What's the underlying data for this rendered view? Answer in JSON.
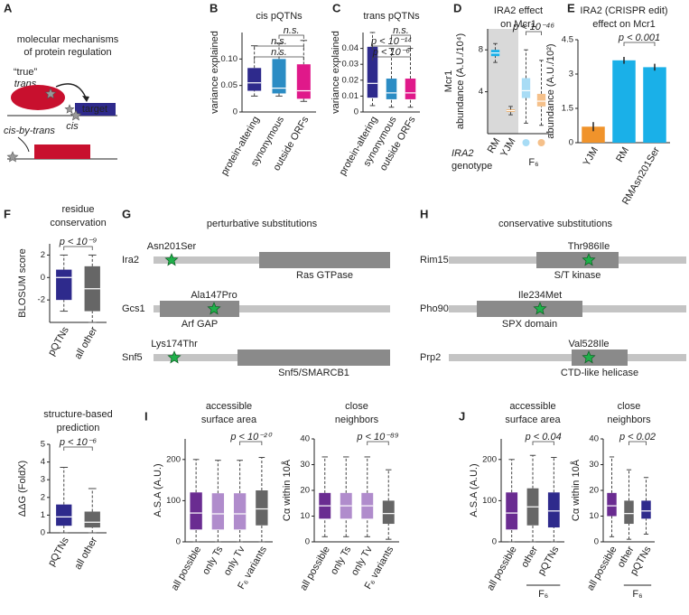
{
  "diagram_a": {
    "panel": "A",
    "title": [
      "molecular mechanisms",
      "of protein regulation"
    ],
    "labels": [
      "“true”",
      "trans",
      "target",
      "cis",
      "cis-by-trans"
    ]
  },
  "diagram_g": {
    "panel": "G",
    "title": "perturbative substitutions",
    "proteins": [
      {
        "name": "Ira2",
        "mutation": "Asn201Ser",
        "domain": "Ras GTPase"
      },
      {
        "name": "Gcs1",
        "mutation": "Ala147Pro",
        "domain": "Arf GAP"
      },
      {
        "name": "Snf5",
        "mutation": "Lys174Thr",
        "domain": "Snf5/SMARCB1"
      }
    ]
  },
  "diagram_h": {
    "panel": "H",
    "title": "conservative substitutions",
    "proteins": [
      {
        "name": "Rim15",
        "mutation": "Thr986Ile",
        "domain": "S/T kinase"
      },
      {
        "name": "Pho90",
        "mutation": "Ile234Met",
        "domain": "SPX domain"
      },
      {
        "name": "Prp2",
        "mutation": "Val528Ile",
        "domain": "CTD-like helicase"
      }
    ]
  },
  "chart_data": [
    {
      "type": "box",
      "panel": "B",
      "title": [
        "cis pQTNs"
      ],
      "ylabel": [
        "variance explained"
      ],
      "ylim": [
        0,
        0.15
      ],
      "yticks": [
        0,
        0.05,
        {
          "value": 0.1,
          "label": "0.10"
        }
      ],
      "categories": [
        "protein-altering",
        "synonymous",
        "outside ORFs"
      ],
      "colors": [
        "#2e2a8c",
        "#2b8cc4",
        "#e0198a"
      ],
      "boxes": [
        {
          "whislo": 0.03,
          "q1": 0.04,
          "med": 0.055,
          "q3": 0.083,
          "whishi": 0.125
        },
        {
          "whislo": 0.03,
          "q1": 0.035,
          "med": 0.045,
          "q3": 0.1,
          "whishi": 0.13
        },
        {
          "whislo": 0.02,
          "q1": 0.025,
          "med": 0.04,
          "q3": 0.09,
          "whishi": 0.135
        }
      ],
      "annotations": [
        "n.s.",
        "n.s.",
        "n.s."
      ]
    },
    {
      "type": "box",
      "panel": "C",
      "title": [
        "trans pQTNs"
      ],
      "ylabel": [
        "variance explained"
      ],
      "ylim": [
        0,
        0.05
      ],
      "yticks": [
        0,
        0.01,
        0.02,
        0.03,
        0.04
      ],
      "categories": [
        "protein-altering",
        "synonymous",
        "outside ORFs"
      ],
      "colors": [
        "#2e2a8c",
        "#2b8cc4",
        "#e0198a"
      ],
      "boxes": [
        {
          "whislo": 0.004,
          "q1": 0.009,
          "med": 0.018,
          "q3": 0.041,
          "whishi": 0.05
        },
        {
          "whislo": 0.003,
          "q1": 0.008,
          "med": 0.012,
          "q3": 0.021,
          "whishi": 0.04
        },
        {
          "whislo": 0.003,
          "q1": 0.008,
          "med": 0.012,
          "q3": 0.021,
          "whishi": 0.04
        }
      ],
      "annotations": [
        "n.s.",
        "p < 10⁻¹⁴",
        "p < 10⁻⁶"
      ]
    },
    {
      "type": "box",
      "panel": "D",
      "title": [
        "IRA2 effect",
        "on Mcr1"
      ],
      "ylabel": [
        "Mcr1",
        "abundance (A.U./10⁴)"
      ],
      "ylim": [
        0,
        10
      ],
      "yticks": [
        4,
        8
      ],
      "categories": [
        "RM",
        "YJM",
        null,
        null
      ],
      "colors": [
        "#1ab0e8",
        "#f0932b",
        "#a8dcf5",
        "#f5c08a"
      ],
      "group_label": "F₆",
      "legend_title": [
        "IRA2",
        "genotype"
      ],
      "boxes": [
        {
          "whislo": 6.8,
          "q1": 7.4,
          "med": 7.7,
          "q3": 8.0,
          "whishi": 8.6
        },
        {
          "whislo": 1.8,
          "q1": 2.1,
          "med": 2.2,
          "q3": 2.3,
          "whishi": 2.6
        },
        {
          "whislo": 1.0,
          "q1": 3.4,
          "med": 4.1,
          "q3": 5.3,
          "whishi": 8.0
        },
        {
          "whislo": 0.8,
          "q1": 2.6,
          "med": 3.1,
          "q3": 3.8,
          "whishi": 7.0
        }
      ],
      "annotations": [
        "p < 10⁻⁴⁶"
      ]
    },
    {
      "type": "bar",
      "panel": "E",
      "title": [
        "IRA2 (CRISPR edit)",
        "effect on Mcr1"
      ],
      "ylabel": [
        "abundance (A.U./10²)"
      ],
      "ylim": [
        0,
        4.5
      ],
      "yticks": [
        0,
        1.5,
        3,
        4.5
      ],
      "categories": [
        "YJM",
        "RM",
        "RMAsn201Ser"
      ],
      "colors": [
        "#f0932b",
        "#1ab0e8",
        "#1ab0e8"
      ],
      "values": [
        0.7,
        3.6,
        3.3
      ],
      "errors": [
        0.2,
        0.15,
        0.15
      ],
      "annotations": [
        "p < 0.001"
      ]
    },
    {
      "type": "box",
      "panel": "F",
      "title": [
        "residue",
        "conservation"
      ],
      "ylabel": [
        "BLOSUM score"
      ],
      "ylim": [
        -4,
        3
      ],
      "yticks": [
        -2,
        0,
        2
      ],
      "categories": [
        "pQTNs",
        "all other"
      ],
      "colors": [
        "#2e2a8c",
        "#666666"
      ],
      "boxes": [
        {
          "whislo": -3,
          "q1": -2,
          "med": 0,
          "q3": 0.7,
          "whishi": 2
        },
        {
          "whislo": -4,
          "q1": -3,
          "med": -1,
          "q3": 1,
          "whishi": 2
        }
      ],
      "annotations": [
        "p < 10⁻⁹"
      ]
    },
    {
      "type": "box",
      "title": [
        "structure-based",
        "prediction"
      ],
      "ylabel": [
        "ΔΔG (FoldX)"
      ],
      "ylim": [
        0,
        5
      ],
      "yticks": [
        0,
        1,
        2,
        3,
        4,
        5
      ],
      "categories": [
        "pQTNs",
        "all other"
      ],
      "colors": [
        "#2e2a8c",
        "#666666"
      ],
      "boxes": [
        {
          "whislo": 0,
          "q1": 0.4,
          "med": 0.9,
          "q3": 1.6,
          "whishi": 3.7
        },
        {
          "whislo": 0,
          "q1": 0.3,
          "med": 0.6,
          "q3": 1.2,
          "whishi": 2.5
        }
      ],
      "annotations": [
        "p < 10⁻⁶"
      ]
    },
    {
      "type": "box",
      "panel": "I",
      "title": [
        "accessible",
        "surface area"
      ],
      "ylabel": [
        "A.S.A (A.U.)"
      ],
      "ylim": [
        0,
        250
      ],
      "yticks": [
        0,
        100,
        200
      ],
      "categories": [
        "all possible",
        "only Ts",
        "only Tv",
        "F₆ variants"
      ],
      "colors": [
        "#6a2c91",
        "#b08ccc",
        "#b08ccc",
        "#666666"
      ],
      "boxes": [
        {
          "whislo": 0,
          "q1": 30,
          "med": 70,
          "q3": 120,
          "whishi": 200
        },
        {
          "whislo": 0,
          "q1": 30,
          "med": 68,
          "q3": 118,
          "whishi": 198
        },
        {
          "whislo": 0,
          "q1": 30,
          "med": 68,
          "q3": 118,
          "whishi": 198
        },
        {
          "whislo": 0,
          "q1": 40,
          "med": 80,
          "q3": 125,
          "whishi": 205
        }
      ],
      "annotations": [
        "p < 10⁻²⁰"
      ]
    },
    {
      "type": "box",
      "title": [
        "close",
        "neighbors"
      ],
      "ylabel": [
        "Cα within 10Å"
      ],
      "ylim": [
        0,
        40
      ],
      "yticks": [
        0,
        10,
        20,
        30,
        40
      ],
      "categories": [
        "all possible",
        "only Ts",
        "only Tv",
        "F₆ variants"
      ],
      "colors": [
        "#6a2c91",
        "#b08ccc",
        "#b08ccc",
        "#666666"
      ],
      "boxes": [
        {
          "whislo": 2,
          "q1": 9,
          "med": 14,
          "q3": 19,
          "whishi": 33
        },
        {
          "whislo": 2,
          "q1": 9,
          "med": 14,
          "q3": 19,
          "whishi": 33
        },
        {
          "whislo": 2,
          "q1": 9,
          "med": 14,
          "q3": 19,
          "whishi": 33
        },
        {
          "whislo": 1,
          "q1": 7,
          "med": 11,
          "q3": 16,
          "whishi": 28
        }
      ],
      "annotations": [
        "p < 10⁻⁸⁹"
      ]
    },
    {
      "type": "box",
      "panel": "J",
      "title": [
        "accessible",
        "surface area"
      ],
      "ylabel": [
        "A.S.A (A.U.)"
      ],
      "ylim": [
        0,
        250
      ],
      "yticks": [
        0,
        100,
        200
      ],
      "categories": [
        "all possible",
        "other",
        "pQTNs"
      ],
      "colors": [
        "#6a2c91",
        "#666666",
        "#2e2a8c"
      ],
      "group_label": "F₆",
      "boxes": [
        {
          "whislo": 0,
          "q1": 30,
          "med": 70,
          "q3": 120,
          "whishi": 200
        },
        {
          "whislo": 0,
          "q1": 40,
          "med": 85,
          "q3": 130,
          "whishi": 210
        },
        {
          "whislo": 0,
          "q1": 35,
          "med": 75,
          "q3": 120,
          "whishi": 205
        }
      ],
      "annotations": [
        "p < 0.04"
      ]
    },
    {
      "type": "box",
      "title": [
        "close",
        "neighbors"
      ],
      "ylabel": [
        "Cα within 10Å"
      ],
      "ylim": [
        0,
        40
      ],
      "yticks": [
        0,
        10,
        20,
        30,
        40
      ],
      "categories": [
        "all possible",
        "other",
        "pQTNs"
      ],
      "colors": [
        "#6a2c91",
        "#666666",
        "#2e2a8c"
      ],
      "group_label": "F₆",
      "boxes": [
        {
          "whislo": 2,
          "q1": 10,
          "med": 14,
          "q3": 19,
          "whishi": 33
        },
        {
          "whislo": 1,
          "q1": 7,
          "med": 11,
          "q3": 16,
          "whishi": 28
        },
        {
          "whislo": 3,
          "q1": 9,
          "med": 12,
          "q3": 16,
          "whishi": 25
        }
      ],
      "annotations": [
        "p < 0.02"
      ]
    }
  ]
}
